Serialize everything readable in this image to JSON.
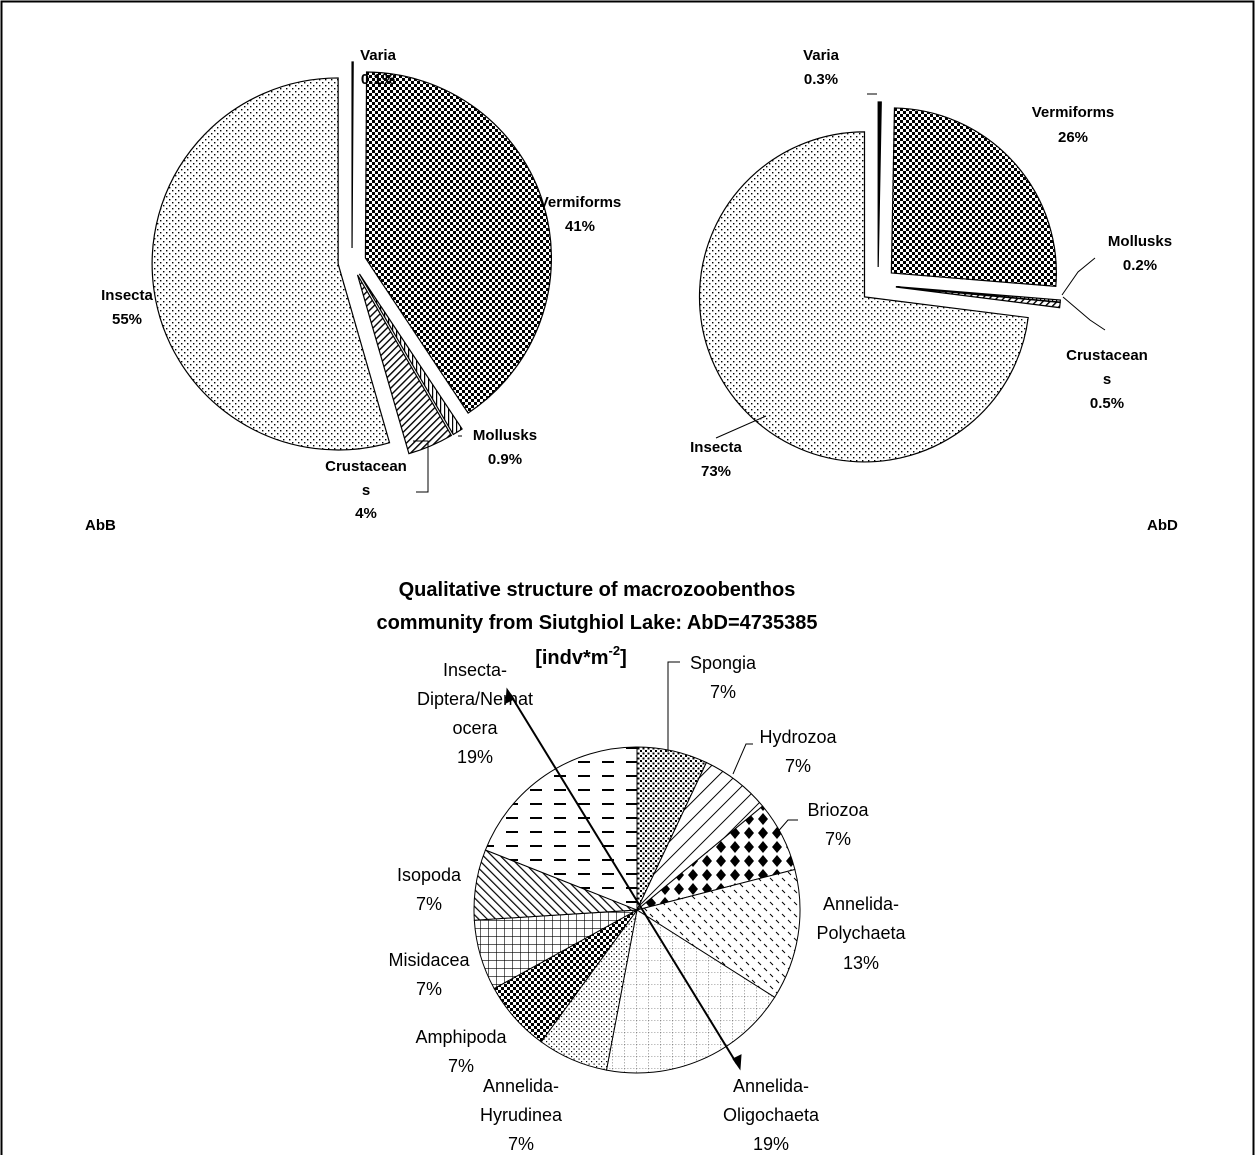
{
  "chart_data": [
    {
      "type": "pie",
      "panel_label": "AbB",
      "slices": [
        {
          "name": "Varia",
          "value": 0.1,
          "label": "0.1%",
          "name_lines": [
            "Varia"
          ],
          "pattern": "solid"
        },
        {
          "name": "Vermiforms",
          "value": 41,
          "label": "41%",
          "name_lines": [
            "Vermiforms"
          ],
          "pattern": "checker"
        },
        {
          "name": "Mollusks",
          "value": 0.9,
          "label": "0.9%",
          "name_lines": [
            "Mollusks"
          ],
          "pattern": "vlines"
        },
        {
          "name": "Crustaceans",
          "value": 4,
          "label": "4%",
          "name_lines": [
            "Crustacean",
            "s"
          ],
          "pattern": "diag"
        },
        {
          "name": "Insecta",
          "value": 55,
          "label": "55%",
          "name_lines": [
            "Insecta"
          ],
          "pattern": "dots"
        }
      ]
    },
    {
      "type": "pie",
      "panel_label": "AbD",
      "slices": [
        {
          "name": "Varia",
          "value": 0.3,
          "label": "0.3%",
          "name_lines": [
            "Varia"
          ],
          "pattern": "solid"
        },
        {
          "name": "Vermiforms",
          "value": 26,
          "label": "26%",
          "name_lines": [
            "Vermiforms"
          ],
          "pattern": "checker"
        },
        {
          "name": "Mollusks",
          "value": 0.2,
          "label": "0.2%",
          "name_lines": [
            "Mollusks"
          ],
          "pattern": "vlines"
        },
        {
          "name": "Crustaceans",
          "value": 0.5,
          "label": "0.5%",
          "name_lines": [
            "Crustacean",
            "s"
          ],
          "pattern": "diag"
        },
        {
          "name": "Insecta",
          "value": 73,
          "label": "73%",
          "name_lines": [
            "Insecta"
          ],
          "pattern": "dots"
        }
      ]
    },
    {
      "type": "pie",
      "title_lines": [
        "Qualitative structure of macrozoobenthos",
        "community from Siutghiol Lake: AbD=4735385"
      ],
      "title_unit": "[indv*m",
      "title_unit_exp": "-2",
      "title_unit_end": "]",
      "slices": [
        {
          "name": "Spongia",
          "value": 7,
          "label": "7%",
          "name_lines": [
            "Spongia"
          ],
          "pattern": "densedots"
        },
        {
          "name": "Hydrozoa",
          "value": 7,
          "label": "7%",
          "name_lines": [
            "Hydrozoa"
          ],
          "pattern": "bigdiag"
        },
        {
          "name": "Briozoa",
          "value": 7,
          "label": "7%",
          "name_lines": [
            "Briozoa"
          ],
          "pattern": "diamonds"
        },
        {
          "name": "Annelida-Polychaeta",
          "value": 13,
          "label": "13%",
          "name_lines": [
            "Annelida-",
            "Polychaeta"
          ],
          "pattern": "dashes"
        },
        {
          "name": "Annelida-Oligochaeta",
          "value": 19,
          "label": "19%",
          "name_lines": [
            "Annelida-",
            "Oligochaeta"
          ],
          "pattern": "grid"
        },
        {
          "name": "Annelida-Hyrudinea",
          "value": 7,
          "label": "7%",
          "name_lines": [
            "Annelida-",
            "Hyrudinea"
          ],
          "pattern": "finedots"
        },
        {
          "name": "Amphipoda",
          "value": 7,
          "label": "7%",
          "name_lines": [
            "Amphipoda"
          ],
          "pattern": "checker"
        },
        {
          "name": "Misidacea",
          "value": 7,
          "label": "7%",
          "name_lines": [
            "Misidacea"
          ],
          "pattern": "biggrid"
        },
        {
          "name": "Isopoda",
          "value": 7,
          "label": "7%",
          "name_lines": [
            "Isopoda"
          ],
          "pattern": "wdiag"
        },
        {
          "name": "Insecta-Diptera/Nematocera",
          "value": 19,
          "label": "19%",
          "name_lines": [
            "Insecta-",
            "Diptera/Nemat",
            "ocera"
          ],
          "pattern": "hdash"
        }
      ]
    }
  ]
}
